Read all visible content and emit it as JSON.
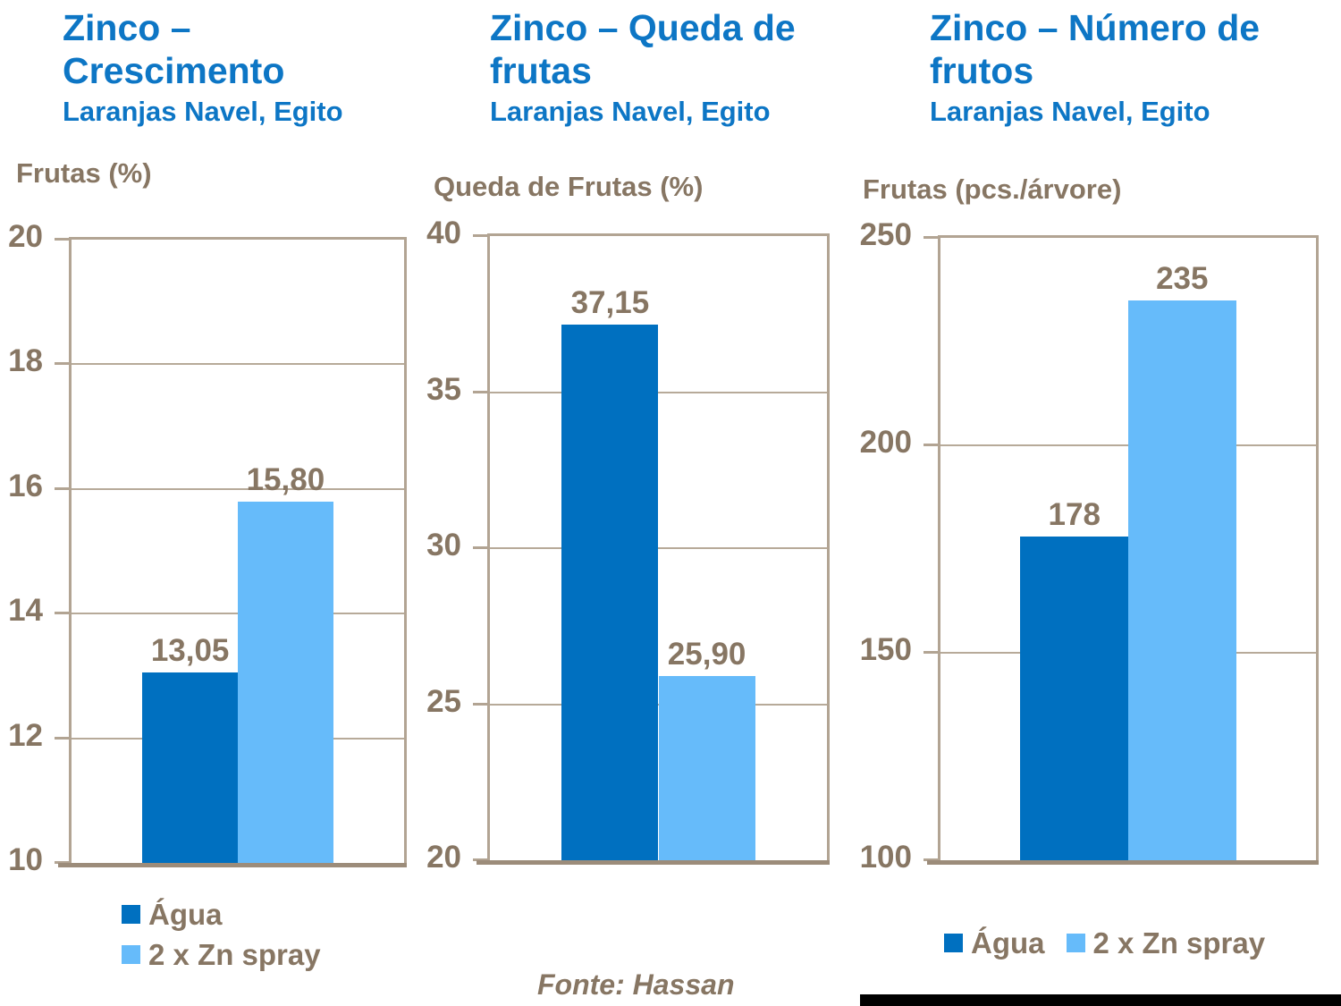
{
  "source_note": "Fonte: Hassan",
  "colors": {
    "title_blue": "#0D76C5",
    "bar_dark": "#0070C0",
    "bar_light": "#66BBFA",
    "text_brown": "#877663",
    "frame_tan": "#B2A493",
    "grid_tan": "#B7AA99",
    "axis_tan": "#9C8C7A",
    "footer_black": "#000000"
  },
  "chart_data": [
    {
      "type": "bar",
      "title": "Zinco – Crescimento",
      "subtitle": "Laranjas Navel, Egito",
      "ylabel": "Frutas (%)",
      "ylim": [
        10,
        20
      ],
      "yticks": [
        10,
        12,
        14,
        16,
        18,
        20
      ],
      "categories": [
        "Água",
        "2 x Zn spray"
      ],
      "series": [
        {
          "name": "Água",
          "value": 13.05,
          "label": "13,05"
        },
        {
          "name": "2 x Zn spray",
          "value": 15.8,
          "label": "15,80"
        }
      ],
      "grid": true,
      "legend_layout": "vertical"
    },
    {
      "type": "bar",
      "title": "Zinco – Queda de frutas",
      "subtitle": "Laranjas Navel, Egito",
      "ylabel": "Queda de Frutas (%)",
      "ylim": [
        20,
        40
      ],
      "yticks": [
        20,
        25,
        30,
        35,
        40
      ],
      "categories": [
        "Água",
        "2 x Zn spray"
      ],
      "series": [
        {
          "name": "Água",
          "value": 37.15,
          "label": "37,15"
        },
        {
          "name": "2 x Zn spray",
          "value": 25.9,
          "label": "25,90"
        }
      ],
      "grid": true,
      "legend_layout": "none"
    },
    {
      "type": "bar",
      "title": "Zinco – Número de frutos",
      "subtitle": "Laranjas Navel, Egito",
      "ylabel": "Frutas (pcs./árvore)",
      "ylim": [
        100,
        250
      ],
      "yticks": [
        100,
        150,
        200,
        250
      ],
      "categories": [
        "Água",
        "2 x Zn spray"
      ],
      "series": [
        {
          "name": "Água",
          "value": 178,
          "label": "178"
        },
        {
          "name": "2 x Zn spray",
          "value": 235,
          "label": "235"
        }
      ],
      "grid": true,
      "legend_layout": "horizontal"
    }
  ]
}
